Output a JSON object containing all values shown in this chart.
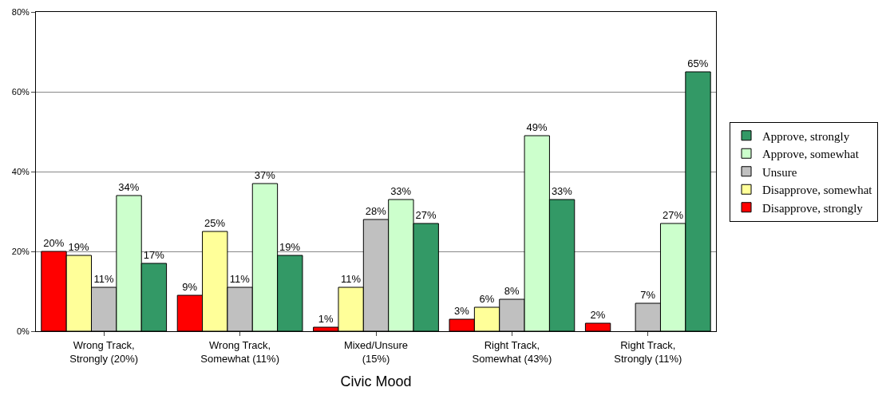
{
  "chart_data": {
    "type": "bar",
    "xlabel": "Civic Mood",
    "categories": [
      "Wrong Track,\nStrongly (20%)",
      "Wrong Track,\nSomewhat (11%)",
      "Mixed/Unsure\n(15%)",
      "Right Track,\nSomewhat (43%)",
      "Right Track,\nStrongly (11%)"
    ],
    "series": [
      {
        "name": "Disapprove, strongly",
        "color": "#ff0000",
        "values": [
          20,
          9,
          1,
          3,
          2
        ],
        "value_labels": [
          "20%",
          "9%",
          "1%",
          "3%",
          "2%"
        ]
      },
      {
        "name": "Disapprove, somewhat",
        "color": "#ffff99",
        "values": [
          19,
          25,
          11,
          6,
          null
        ],
        "value_labels": [
          "19%",
          "25%",
          "11%",
          "6%",
          null
        ]
      },
      {
        "name": "Unsure",
        "color": "#c0c0c0",
        "values": [
          11,
          11,
          28,
          8,
          7
        ],
        "value_labels": [
          "11%",
          "11%",
          "28%",
          "8%",
          "7%"
        ]
      },
      {
        "name": "Approve, somewhat",
        "color": "#ccffcc",
        "values": [
          34,
          37,
          33,
          49,
          27
        ],
        "value_labels": [
          "34%",
          "37%",
          "33%",
          "49%",
          "27%"
        ]
      },
      {
        "name": "Approve, strongly",
        "color": "#339966",
        "values": [
          17,
          19,
          27,
          33,
          65
        ],
        "value_labels": [
          "17%",
          "19%",
          "27%",
          "33%",
          "65%"
        ]
      }
    ],
    "ylim": [
      0,
      80
    ],
    "yticks": [
      {
        "value": 0,
        "label": "0%"
      },
      {
        "value": 20,
        "label": "20%"
      },
      {
        "value": 40,
        "label": "40%"
      },
      {
        "value": 60,
        "label": "60%"
      },
      {
        "value": 80,
        "label": "80%"
      }
    ],
    "grid": "y",
    "legend": "right"
  }
}
